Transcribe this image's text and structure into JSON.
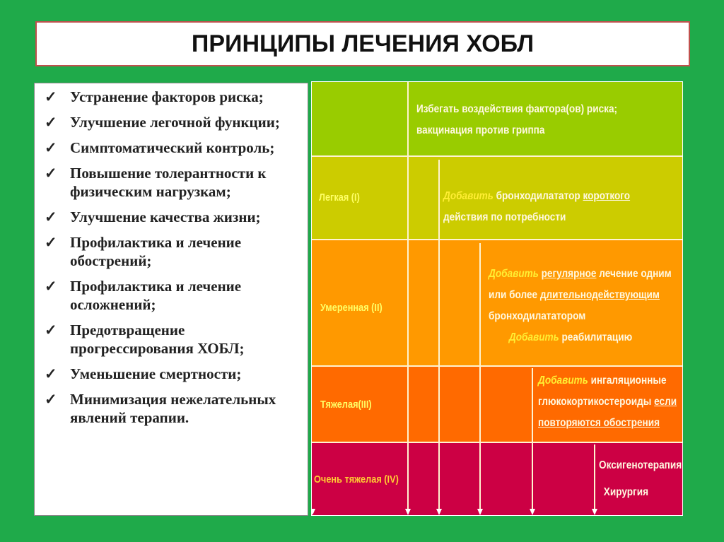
{
  "title": "ПРИНЦИПЫ ЛЕЧЕНИЯ ХОБЛ",
  "principles": [
    "Устранение факторов риска;",
    "Улучшение легочной функции;",
    "Симптоматический контроль;",
    "Повышение толерантности к физическим нагрузкам;",
    "Улучшение качества жизни;",
    "Профилактика и лечение обострений;",
    "Профилактика и лечение осложнений;",
    "Предотвращение прогрессирования ХОБЛ;",
    "Уменьшение смертности;",
    "Минимизация нежелательных явлений терапии."
  ],
  "check_icon": "✓",
  "table": {
    "rows": [
      {
        "stage": "",
        "color": "#99cc00",
        "lines": [
          "Избегать воздействия фактора(ов) риска;",
          "вакцинация против гриппа"
        ]
      },
      {
        "stage": "Легкая (I)",
        "color": "#cccc00",
        "add": "Добавить",
        "l1": "бронходилататор",
        "l1u": "короткого",
        "l2": "действия по потребности"
      },
      {
        "stage": "Умеренная (II)",
        "color": "#ff9900",
        "add": "Добавить",
        "l1u": "регулярное",
        "l1": "лечение одним",
        "l2a": "или более",
        "l2u": "длительнодействующим",
        "l3": "бронходилататором",
        "l4": "реабилитацию"
      },
      {
        "stage": "Тяжелая(III)",
        "color": "#ff6a00",
        "add": "Добавить",
        "l1": "ингаляционные",
        "l2": "глюкокортикостероиды",
        "l2u": "если",
        "l3u": "повторяются обострения"
      },
      {
        "stage": "Очень тяжелая (IV)",
        "color": "#cc0044",
        "l1": "Оксигенотерапия",
        "l2": "Хирургия"
      }
    ]
  }
}
